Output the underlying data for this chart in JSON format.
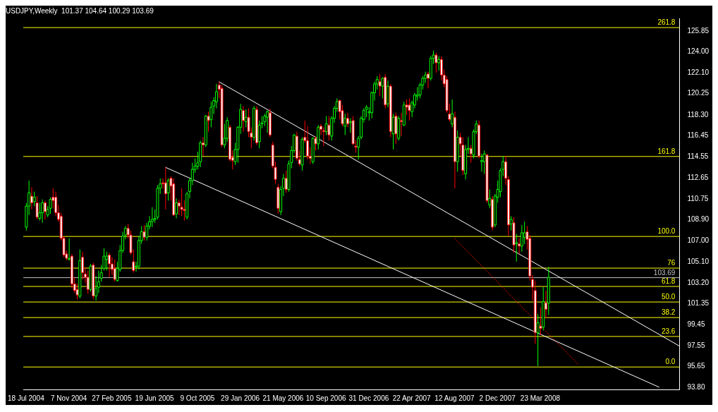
{
  "chart_data": {
    "type": "candlestick",
    "title": "USDJPY,Weekly  101.37 104.64 100.29 103.69",
    "x": [
      "2004-07-18",
      "2004-07-25",
      "2004-08-01",
      "2004-08-08",
      "2004-08-15",
      "2004-08-22",
      "2004-08-29",
      "2004-09-05",
      "2004-09-12",
      "2004-09-19",
      "2004-09-26",
      "2004-10-03",
      "2004-10-10",
      "2004-10-17",
      "2004-10-24",
      "2004-10-31",
      "2004-11-07",
      "2004-11-14",
      "2004-11-21",
      "2004-11-28",
      "2004-12-05",
      "2004-12-12",
      "2004-12-19",
      "2004-12-26",
      "2005-01-02",
      "2005-01-09",
      "2005-01-16",
      "2005-01-23",
      "2005-01-30",
      "2005-02-06",
      "2005-02-13",
      "2005-02-20",
      "2005-02-27",
      "2005-03-06",
      "2005-03-13",
      "2005-03-20",
      "2005-03-27",
      "2005-04-03",
      "2005-04-10",
      "2005-04-17",
      "2005-04-24",
      "2005-05-01",
      "2005-05-08",
      "2005-05-15",
      "2005-05-22",
      "2005-05-29",
      "2005-06-05",
      "2005-06-12",
      "2005-06-19",
      "2005-06-26",
      "2005-07-03",
      "2005-07-10",
      "2005-07-17",
      "2005-07-24",
      "2005-07-31",
      "2005-08-07",
      "2005-08-14",
      "2005-08-21",
      "2005-08-28",
      "2005-09-04",
      "2005-09-11",
      "2005-09-18",
      "2005-09-25",
      "2005-10-02",
      "2005-10-09",
      "2005-10-16",
      "2005-10-23",
      "2005-10-30",
      "2005-11-06",
      "2005-11-13",
      "2005-11-20",
      "2005-11-27",
      "2005-12-04",
      "2005-12-11",
      "2005-12-18",
      "2005-12-25",
      "2006-01-01",
      "2006-01-08",
      "2006-01-15",
      "2006-01-22",
      "2006-01-29",
      "2006-02-05",
      "2006-02-12",
      "2006-02-19",
      "2006-02-26",
      "2006-03-05",
      "2006-03-12",
      "2006-03-19",
      "2006-03-26",
      "2006-04-02",
      "2006-04-09",
      "2006-04-16",
      "2006-04-23",
      "2006-04-30",
      "2006-05-07",
      "2006-05-14",
      "2006-05-21",
      "2006-05-28",
      "2006-06-04",
      "2006-06-11",
      "2006-06-18",
      "2006-06-25",
      "2006-07-02",
      "2006-07-09",
      "2006-07-16",
      "2006-07-23",
      "2006-07-30",
      "2006-08-06",
      "2006-08-13",
      "2006-08-20",
      "2006-08-27",
      "2006-09-03",
      "2006-09-10",
      "2006-09-17",
      "2006-09-24",
      "2006-10-01",
      "2006-10-08",
      "2006-10-15",
      "2006-10-22",
      "2006-10-29",
      "2006-11-05",
      "2006-11-12",
      "2006-11-19",
      "2006-11-26",
      "2006-12-03",
      "2006-12-10",
      "2006-12-17",
      "2006-12-24",
      "2006-12-31",
      "2007-01-07",
      "2007-01-14",
      "2007-01-21",
      "2007-01-28",
      "2007-02-04",
      "2007-02-11",
      "2007-02-18",
      "2007-02-25",
      "2007-03-04",
      "2007-03-11",
      "2007-03-18",
      "2007-03-25",
      "2007-04-01",
      "2007-04-08",
      "2007-04-15",
      "2007-04-22",
      "2007-04-29",
      "2007-05-06",
      "2007-05-13",
      "2007-05-20",
      "2007-05-27",
      "2007-06-03",
      "2007-06-10",
      "2007-06-17",
      "2007-06-24",
      "2007-07-01",
      "2007-07-08",
      "2007-07-15",
      "2007-07-22",
      "2007-07-29",
      "2007-08-05",
      "2007-08-12",
      "2007-08-19",
      "2007-08-26",
      "2007-09-02",
      "2007-09-09",
      "2007-09-16",
      "2007-09-23",
      "2007-09-30",
      "2007-10-07",
      "2007-10-14",
      "2007-10-21",
      "2007-10-28",
      "2007-11-04",
      "2007-11-11",
      "2007-11-18",
      "2007-11-25",
      "2007-12-02",
      "2007-12-09",
      "2007-12-16",
      "2007-12-23",
      "2007-12-30",
      "2008-01-06",
      "2008-01-13",
      "2008-01-20",
      "2008-01-27",
      "2008-02-03",
      "2008-02-10",
      "2008-02-17",
      "2008-02-24",
      "2008-03-02",
      "2008-03-09",
      "2008-03-16",
      "2008-03-23",
      "2008-03-30",
      "2008-04-06",
      "2008-04-13"
    ],
    "ohlc": [
      [
        108.2,
        110.4,
        107.9,
        110.1
      ],
      [
        110.1,
        112.4,
        109.3,
        111.3
      ],
      [
        111.0,
        111.8,
        109.8,
        110.4
      ],
      [
        110.5,
        111.4,
        110.1,
        110.9
      ],
      [
        110.4,
        111.0,
        108.9,
        109.1
      ],
      [
        109.0,
        110.4,
        108.8,
        109.5
      ],
      [
        109.5,
        110.7,
        108.6,
        110.4
      ],
      [
        110.4,
        110.6,
        108.9,
        109.6
      ],
      [
        109.3,
        110.1,
        109.1,
        109.8
      ],
      [
        109.9,
        110.9,
        109.4,
        110.7
      ],
      [
        110.9,
        111.7,
        109.9,
        110.6
      ],
      [
        110.9,
        111.4,
        109.2,
        109.5
      ],
      [
        109.5,
        110.2,
        108.7,
        108.9
      ],
      [
        109.2,
        109.5,
        107.0,
        107.2
      ],
      [
        107.2,
        107.4,
        105.5,
        105.7
      ],
      [
        105.8,
        106.1,
        105.2,
        105.4
      ],
      [
        105.3,
        107.2,
        105.2,
        105.4
      ],
      [
        105.6,
        105.8,
        102.7,
        103.1
      ],
      [
        103.1,
        103.7,
        102.3,
        102.5
      ],
      [
        102.6,
        103.1,
        101.7,
        102.1
      ],
      [
        102.0,
        106.2,
        101.8,
        105.2
      ],
      [
        105.5,
        106.0,
        103.5,
        104.1
      ],
      [
        104.0,
        104.6,
        103.2,
        103.7
      ],
      [
        103.7,
        104.3,
        102.2,
        102.6
      ],
      [
        102.6,
        104.9,
        102.4,
        104.7
      ],
      [
        104.8,
        105.0,
        101.7,
        102.0
      ],
      [
        102.0,
        103.8,
        101.6,
        102.7
      ],
      [
        102.8,
        104.3,
        102.3,
        103.3
      ],
      [
        103.6,
        104.8,
        103.3,
        104.1
      ],
      [
        104.5,
        106.3,
        104.3,
        105.6
      ],
      [
        105.3,
        106.0,
        104.3,
        105.6
      ],
      [
        105.7,
        105.9,
        103.7,
        104.9
      ],
      [
        104.9,
        105.5,
        103.9,
        104.4
      ],
      [
        104.5,
        105.3,
        103.3,
        103.5
      ],
      [
        103.4,
        105.1,
        103.3,
        104.5
      ],
      [
        104.4,
        106.6,
        104.2,
        106.1
      ],
      [
        106.1,
        107.8,
        105.9,
        107.4
      ],
      [
        107.5,
        108.3,
        107.1,
        108.1
      ],
      [
        108.1,
        108.5,
        107.2,
        107.5
      ],
      [
        107.5,
        107.9,
        105.7,
        105.9
      ],
      [
        105.1,
        106.2,
        104.1,
        104.3
      ],
      [
        104.6,
        105.1,
        104.2,
        104.7
      ],
      [
        104.7,
        107.4,
        104.4,
        107.0
      ],
      [
        107.0,
        108.3,
        106.7,
        107.8
      ],
      [
        107.8,
        108.4,
        107.0,
        107.3
      ],
      [
        107.3,
        108.6,
        107.0,
        108.3
      ],
      [
        108.3,
        109.2,
        108.0,
        108.7
      ],
      [
        108.7,
        110.0,
        108.2,
        108.9
      ],
      [
        108.9,
        109.8,
        108.6,
        109.0
      ],
      [
        109.1,
        112.0,
        108.9,
        111.7
      ],
      [
        111.7,
        112.6,
        111.2,
        112.1
      ],
      [
        112.2,
        112.6,
        111.7,
        112.1
      ],
      [
        112.2,
        113.6,
        109.8,
        111.2
      ],
      [
        111.3,
        112.6,
        110.6,
        112.4
      ],
      [
        112.6,
        112.8,
        110.6,
        111.9
      ],
      [
        112.1,
        112.6,
        109.2,
        109.3
      ],
      [
        109.4,
        110.8,
        109.0,
        110.4
      ],
      [
        110.4,
        110.7,
        109.3,
        110.1
      ],
      [
        110.0,
        111.7,
        109.2,
        109.8
      ],
      [
        109.8,
        110.6,
        108.8,
        109.7
      ],
      [
        109.1,
        111.4,
        108.9,
        111.2
      ],
      [
        111.4,
        112.6,
        110.8,
        112.4
      ],
      [
        112.4,
        114.0,
        112.0,
        113.4
      ],
      [
        113.4,
        114.4,
        113.1,
        113.7
      ],
      [
        113.7,
        115.0,
        113.4,
        114.0
      ],
      [
        114.1,
        116.0,
        113.6,
        115.8
      ],
      [
        115.8,
        116.3,
        114.6,
        115.6
      ],
      [
        115.6,
        118.3,
        115.4,
        118.2
      ],
      [
        118.2,
        118.6,
        116.8,
        117.8
      ],
      [
        117.9,
        119.5,
        117.2,
        119.0
      ],
      [
        119.1,
        119.9,
        118.4,
        119.6
      ],
      [
        119.5,
        121.1,
        118.9,
        120.4
      ],
      [
        121.0,
        121.3,
        119.8,
        120.6
      ],
      [
        120.7,
        121.0,
        115.4,
        115.6
      ],
      [
        115.6,
        117.5,
        115.3,
        116.2
      ],
      [
        116.2,
        118.1,
        115.9,
        117.8
      ],
      [
        117.2,
        117.4,
        114.1,
        114.3
      ],
      [
        114.5,
        115.1,
        113.4,
        114.2
      ],
      [
        114.1,
        115.8,
        113.8,
        115.2
      ],
      [
        115.2,
        117.3,
        114.0,
        117.2
      ],
      [
        117.2,
        119.3,
        116.6,
        118.8
      ],
      [
        118.7,
        119.1,
        116.8,
        117.8
      ],
      [
        117.7,
        118.8,
        117.2,
        118.1
      ],
      [
        118.1,
        118.9,
        116.3,
        116.8
      ],
      [
        116.7,
        117.2,
        115.3,
        116.3
      ],
      [
        116.3,
        119.1,
        116.0,
        118.9
      ],
      [
        118.8,
        119.1,
        115.6,
        115.8
      ],
      [
        115.9,
        117.8,
        115.3,
        117.4
      ],
      [
        117.5,
        118.2,
        117.1,
        117.6
      ],
      [
        117.7,
        118.4,
        117.3,
        118.2
      ],
      [
        118.1,
        118.7,
        116.7,
        118.6
      ],
      [
        118.5,
        118.9,
        116.3,
        116.5
      ],
      [
        115.6,
        115.9,
        113.5,
        113.7
      ],
      [
        113.6,
        114.1,
        112.1,
        112.5
      ],
      [
        111.8,
        112.1,
        109.4,
        109.9
      ],
      [
        109.6,
        111.9,
        109.3,
        111.6
      ],
      [
        111.7,
        113.0,
        111.0,
        112.6
      ],
      [
        112.6,
        113.3,
        111.3,
        111.6
      ],
      [
        111.6,
        114.2,
        111.4,
        113.9
      ],
      [
        114.0,
        115.5,
        113.5,
        115.1
      ],
      [
        115.1,
        116.6,
        114.9,
        116.5
      ],
      [
        116.4,
        116.8,
        114.2,
        114.4
      ],
      [
        114.3,
        115.1,
        113.7,
        113.9
      ],
      [
        113.8,
        116.3,
        113.3,
        116.1
      ],
      [
        116.3,
        117.8,
        115.8,
        116.0
      ],
      [
        116.0,
        117.3,
        114.3,
        114.6
      ],
      [
        114.6,
        115.4,
        113.9,
        114.4
      ],
      [
        114.1,
        116.3,
        113.9,
        116.2
      ],
      [
        116.2,
        116.4,
        115.1,
        115.7
      ],
      [
        115.7,
        117.4,
        115.2,
        117.2
      ],
      [
        117.3,
        117.5,
        116.5,
        117.0
      ],
      [
        116.9,
        117.2,
        115.5,
        116.8
      ],
      [
        116.8,
        118.2,
        116.5,
        117.5
      ],
      [
        117.4,
        118.2,
        116.0,
        116.5
      ],
      [
        116.4,
        118.2,
        116.0,
        118.0
      ],
      [
        118.0,
        119.1,
        117.6,
        118.9
      ],
      [
        118.9,
        119.8,
        118.6,
        119.5
      ],
      [
        119.6,
        119.7,
        117.9,
        118.6
      ],
      [
        118.7,
        119.2,
        117.3,
        117.5
      ],
      [
        117.3,
        118.4,
        116.5,
        118.0
      ],
      [
        118.0,
        118.5,
        117.2,
        117.5
      ],
      [
        117.6,
        118.0,
        116.7,
        117.7
      ],
      [
        117.8,
        118.2,
        115.6,
        115.7
      ],
      [
        115.5,
        116.0,
        114.9,
        115.4
      ],
      [
        115.4,
        116.4,
        114.3,
        116.2
      ],
      [
        116.3,
        118.2,
        116.1,
        118.0
      ],
      [
        117.9,
        118.9,
        117.6,
        118.7
      ],
      [
        118.8,
        119.2,
        118.1,
        119.0
      ],
      [
        118.5,
        119.0,
        117.8,
        118.6
      ],
      [
        118.5,
        120.4,
        118.0,
        120.3
      ],
      [
        120.3,
        121.3,
        119.6,
        121.1
      ],
      [
        121.1,
        121.8,
        120.6,
        121.5
      ],
      [
        121.3,
        122.0,
        120.0,
        120.9
      ],
      [
        120.9,
        121.7,
        119.8,
        121.6
      ],
      [
        121.7,
        122.0,
        118.9,
        119.2
      ],
      [
        119.3,
        121.4,
        119.0,
        120.9
      ],
      [
        120.9,
        121.1,
        116.3,
        116.8
      ],
      [
        116.6,
        118.4,
        115.2,
        118.1
      ],
      [
        118.2,
        118.5,
        115.7,
        116.6
      ],
      [
        116.2,
        118.2,
        116.0,
        118.0
      ],
      [
        117.8,
        118.5,
        116.4,
        117.7
      ],
      [
        117.4,
        119.5,
        117.3,
        119.2
      ],
      [
        119.2,
        119.7,
        118.3,
        119.0
      ],
      [
        119.2,
        119.8,
        117.8,
        118.7
      ],
      [
        118.6,
        119.6,
        118.1,
        119.4
      ],
      [
        119.2,
        120.3,
        118.9,
        120.1
      ],
      [
        120.0,
        120.8,
        119.6,
        120.1
      ],
      [
        120.1,
        121.2,
        119.8,
        121.0
      ],
      [
        121.0,
        121.8,
        120.6,
        121.6
      ],
      [
        121.6,
        122.2,
        121.2,
        121.9
      ],
      [
        122.0,
        122.2,
        120.7,
        121.6
      ],
      [
        121.6,
        123.6,
        121.4,
        123.4
      ],
      [
        123.4,
        124.1,
        122.9,
        123.7
      ],
      [
        123.7,
        123.9,
        122.1,
        123.0
      ],
      [
        123.0,
        123.6,
        122.3,
        123.3
      ],
      [
        123.3,
        123.6,
        121.4,
        121.9
      ],
      [
        121.9,
        122.4,
        120.8,
        121.1
      ],
      [
        121.5,
        121.8,
        118.5,
        118.7
      ],
      [
        118.4,
        119.3,
        117.7,
        117.9
      ],
      [
        117.5,
        119.7,
        117.2,
        118.4
      ],
      [
        118.1,
        118.6,
        111.7,
        114.1
      ],
      [
        114.1,
        116.9,
        113.2,
        116.3
      ],
      [
        116.3,
        116.7,
        114.6,
        115.7
      ],
      [
        115.6,
        116.3,
        112.9,
        113.3
      ],
      [
        113.0,
        115.6,
        112.5,
        115.2
      ],
      [
        115.2,
        116.3,
        114.8,
        115.3
      ],
      [
        115.3,
        115.6,
        114.0,
        114.8
      ],
      [
        114.7,
        117.0,
        114.4,
        116.8
      ],
      [
        116.8,
        117.8,
        116.6,
        117.5
      ],
      [
        117.4,
        117.8,
        114.4,
        114.6
      ],
      [
        114.1,
        114.8,
        113.2,
        114.2
      ],
      [
        114.1,
        115.1,
        113.0,
        114.8
      ],
      [
        114.7,
        114.8,
        110.4,
        110.6
      ],
      [
        110.2,
        111.6,
        109.9,
        110.8
      ],
      [
        110.7,
        111.0,
        107.9,
        108.2
      ],
      [
        108.4,
        111.2,
        108.2,
        111.0
      ],
      [
        110.9,
        112.4,
        110.4,
        111.6
      ],
      [
        111.4,
        113.5,
        110.9,
        113.3
      ],
      [
        113.4,
        114.6,
        112.8,
        114.1
      ],
      [
        114.1,
        114.6,
        112.0,
        112.6
      ],
      [
        112.5,
        112.8,
        107.4,
        108.4
      ],
      [
        108.5,
        109.2,
        107.9,
        108.9
      ],
      [
        108.6,
        109.1,
        105.9,
        106.6
      ],
      [
        106.7,
        107.6,
        105.1,
        106.8
      ],
      [
        106.7,
        107.2,
        105.8,
        106.5
      ],
      [
        106.5,
        108.4,
        106.0,
        107.7
      ],
      [
        107.3,
        108.7,
        106.7,
        107.7
      ],
      [
        107.8,
        108.3,
        106.2,
        107.1
      ],
      [
        107.2,
        107.5,
        103.4,
        103.8
      ],
      [
        103.5,
        103.9,
        101.6,
        102.8
      ],
      [
        102.5,
        103.4,
        97.7,
        98.7
      ],
      [
        98.7,
        100.4,
        95.7,
        99.6
      ],
      [
        99.3,
        101.0,
        98.5,
        99.1
      ],
      [
        99.2,
        102.8,
        98.9,
        101.5
      ],
      [
        101.4,
        102.5,
        100.0,
        100.8
      ],
      [
        101.37,
        104.64,
        100.29,
        103.69
      ]
    ],
    "series": [
      {
        "type": "line",
        "color": "#ffffff",
        "x": [
          "2005-12-04",
          "2009-03-22"
        ],
        "values": [
          121.3,
          97.5
        ]
      },
      {
        "type": "line",
        "color": "#ffffff",
        "x": [
          "2005-07-17",
          "2009-01-28"
        ],
        "values": [
          113.6,
          93.8
        ]
      },
      {
        "type": "line",
        "color": "#ff0000",
        "line_style": "dashed",
        "x": [
          "2007-08-12",
          "2008-07-02"
        ],
        "values": [
          107.2,
          95.8
        ]
      }
    ],
    "xlim": [
      "2004-07-11",
      "2009-03-22"
    ],
    "xticks": [
      {
        "value": "2004-07-18",
        "label": "18 Jul 2004"
      },
      {
        "value": "2004-11-07",
        "label": "7 Nov 2004"
      },
      {
        "value": "2005-02-27",
        "label": "27 Feb 2005"
      },
      {
        "value": "2005-06-19",
        "label": "19 Jun 2005"
      },
      {
        "value": "2005-10-09",
        "label": "9 Oct 2005"
      },
      {
        "value": "2006-01-29",
        "label": "29 Jan 2006"
      },
      {
        "value": "2006-05-21",
        "label": "21 May 2006"
      },
      {
        "value": "2006-09-10",
        "label": "10 Sep 2006"
      },
      {
        "value": "2006-12-31",
        "label": "31 Dec 2006"
      },
      {
        "value": "2007-04-22",
        "label": "22 Apr 2007"
      },
      {
        "value": "2007-08-12",
        "label": "12 Aug 2007"
      },
      {
        "value": "2007-12-02",
        "label": "2 Dec 2007"
      },
      {
        "value": "2008-03-23",
        "label": "23 Mar 2008"
      }
    ],
    "ylim": [
      93.6,
      127.0
    ],
    "yticks": [
      125.85,
      {
        "value": 124,
        "label": "124.00"
      },
      {
        "value": 122.1,
        "label": "122.10"
      },
      120.25,
      {
        "value": 118.3,
        "label": "118.30"
      },
      116.45,
      114.55,
      112.65,
      110.75,
      {
        "value": 108.9,
        "label": "108.90"
      },
      {
        "value": 107,
        "label": "107.00"
      },
      {
        "value": 105.1,
        "label": "105.10"
      },
      {
        "value": 103.2,
        "label": "103.20"
      },
      101.35,
      99.45,
      97.55,
      95.65,
      {
        "value": 93.8,
        "label": "93.80"
      }
    ],
    "ref_lines": [
      {
        "axis": "y",
        "value": 126.2,
        "color": "#ffff00"
      },
      {
        "axis": "y",
        "value": 114.6,
        "color": "#ffff00"
      },
      {
        "axis": "y",
        "value": 107.4,
        "color": "#ffff00"
      },
      {
        "axis": "y",
        "value": 104.55,
        "color": "#ffff00"
      },
      {
        "axis": "y",
        "value": 103.69,
        "label": "103.69",
        "color": "#c0c0c0"
      },
      {
        "axis": "y",
        "value": 102.9,
        "color": "#ffff00"
      },
      {
        "axis": "y",
        "value": 101.5,
        "color": "#ffff00"
      },
      {
        "axis": "y",
        "value": 100.1,
        "color": "#ffff00"
      },
      {
        "axis": "y",
        "value": 98.4,
        "color": "#ffff00"
      },
      {
        "axis": "y",
        "value": 95.65,
        "color": "#ffff00"
      }
    ],
    "annotations": [
      {
        "text": "261.8",
        "y": 126.2
      },
      {
        "text": "161.8",
        "y": 114.6
      },
      {
        "text": "100.0",
        "y": 107.4
      },
      {
        "text": "76",
        "y": 104.55
      },
      {
        "text": "61.8",
        "y": 102.9
      },
      {
        "text": "50.0",
        "y": 101.5
      },
      {
        "text": "38.2",
        "y": 100.1
      },
      {
        "text": "23.6",
        "y": 98.4
      },
      {
        "text": "0.0",
        "y": 95.65
      }
    ]
  }
}
